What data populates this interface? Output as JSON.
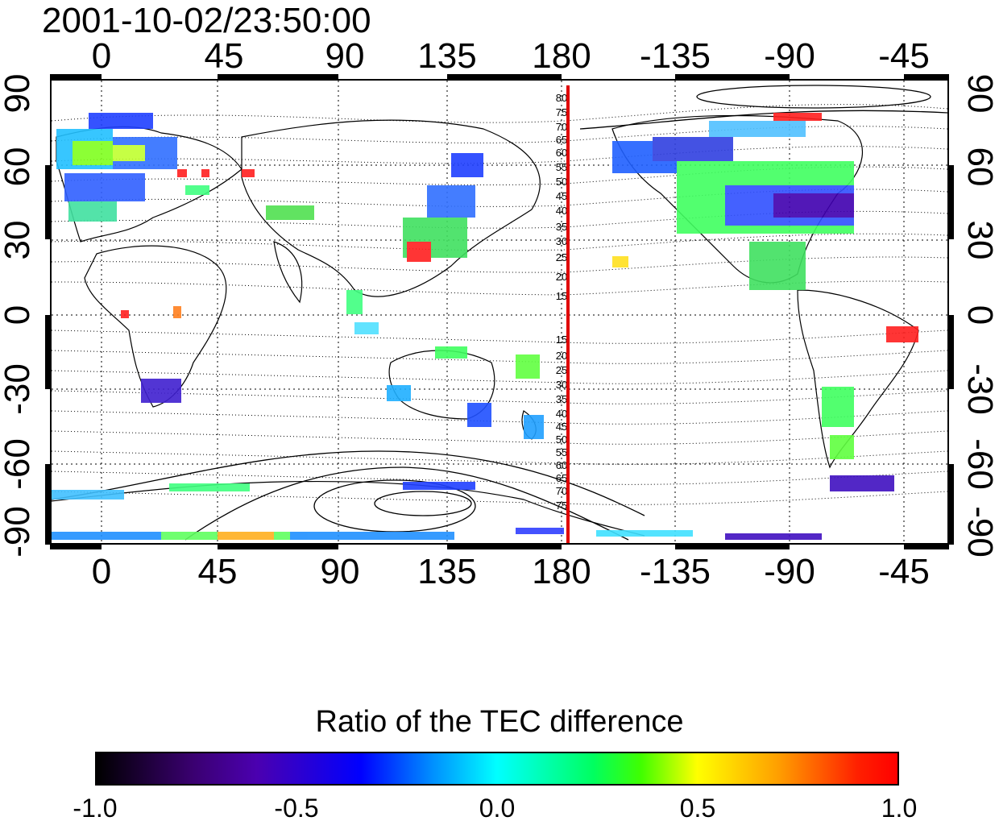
{
  "title": "2001-10-02/23:50:00",
  "map": {
    "top_axis_ticks": [
      "0",
      "45",
      "90",
      "135",
      "180",
      "-135",
      "-90",
      "-45"
    ],
    "bottom_axis_ticks": [
      "0",
      "45",
      "90",
      "135",
      "180",
      "-135",
      "-90",
      "-45"
    ],
    "left_axis_ticks": [
      "90",
      "60",
      "30",
      "0",
      "-30",
      "-60",
      "-90"
    ],
    "right_axis_ticks": [
      "90",
      "60",
      "30",
      "0",
      "-30",
      "-60",
      "-90"
    ],
    "contour_labels_north": [
      "80",
      "75",
      "70",
      "65",
      "60",
      "55",
      "50",
      "45",
      "40",
      "35",
      "30",
      "25",
      "20",
      "15"
    ],
    "contour_labels_south": [
      "15",
      "20",
      "25",
      "30",
      "35",
      "40",
      "45",
      "50",
      "55",
      "60",
      "65",
      "70",
      "75"
    ],
    "highlight_meridian_lon": 182,
    "highlight_color": "#e00000"
  },
  "colorbar": {
    "title": "Ratio of the TEC difference",
    "ticks": [
      "-1.0",
      "-0.5",
      "0.0",
      "0.5",
      "1.0"
    ],
    "range": [
      -1.0,
      1.0
    ],
    "colors": [
      "#000000",
      "#4b00b0",
      "#0000ff",
      "#00ffff",
      "#40ff00",
      "#ffff00",
      "#ff0000"
    ]
  },
  "chart_data": {
    "type": "heatmap",
    "title": "2001-10-02/23:50:00",
    "colorbar_label": "Ratio of the TEC difference",
    "lon_ticks": [
      0,
      45,
      90,
      135,
      180,
      -135,
      -90,
      -45
    ],
    "lat_ticks": [
      90,
      60,
      30,
      0,
      -30,
      -60,
      -90
    ],
    "value_range": [
      -1.0,
      1.0
    ],
    "grid": true
  }
}
